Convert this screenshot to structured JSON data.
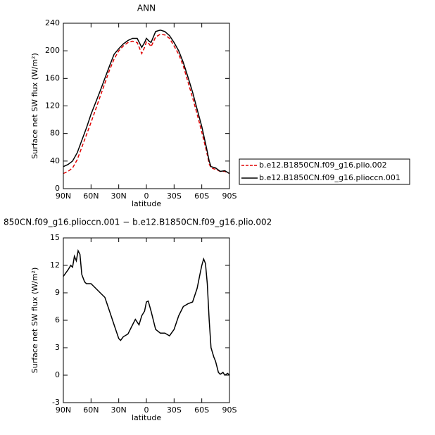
{
  "chart_data": [
    {
      "type": "line",
      "title": "ANN",
      "ylabel": "Surface net SW flux (W/m²)",
      "xlabel": "latitude",
      "xlim": [
        90,
        -90
      ],
      "xticks": [
        {
          "value": 90,
          "label": "90N"
        },
        {
          "value": 60,
          "label": "60N"
        },
        {
          "value": 30,
          "label": "30N"
        },
        0,
        {
          "value": -30,
          "label": "30S"
        },
        {
          "value": -60,
          "label": "60S"
        },
        {
          "value": -90,
          "label": "90S"
        }
      ],
      "ylim": [
        0,
        240
      ],
      "yticks": [
        0,
        40,
        80,
        120,
        160,
        200,
        240
      ],
      "legend": "right",
      "x": [
        90,
        85,
        80,
        75,
        70,
        65,
        60,
        55,
        50,
        45,
        40,
        35,
        30,
        25,
        20,
        15,
        10,
        5,
        2,
        0,
        -3,
        -5,
        -10,
        -15,
        -20,
        -25,
        -30,
        -35,
        -40,
        -45,
        -50,
        -55,
        -60,
        -65,
        -68,
        -70,
        -75,
        -80,
        -85,
        -90
      ],
      "series": [
        {
          "name": "b.e12.B1850CN.f09_g16.plio.002",
          "color": "#e00000",
          "dash": true,
          "values": [
            22,
            25,
            30,
            42,
            60,
            78,
            96,
            115,
            134,
            153,
            172,
            188,
            200,
            207,
            212,
            214,
            212,
            196,
            205,
            213,
            210,
            206,
            220,
            224,
            223,
            218,
            207,
            195,
            178,
            155,
            132,
            108,
            82,
            55,
            36,
            30,
            28,
            25,
            25,
            22
          ]
        },
        {
          "name": "b.e12.B1850CN.f09_g16.plioccn.001",
          "color": "#000000",
          "dash": false,
          "values": [
            32,
            35,
            40,
            52,
            70,
            88,
            108,
            125,
            142,
            160,
            178,
            195,
            203,
            210,
            215,
            218,
            218,
            205,
            212,
            218,
            214,
            212,
            228,
            230,
            228,
            222,
            212,
            200,
            183,
            162,
            140,
            115,
            90,
            60,
            40,
            32,
            30,
            25,
            26,
            22
          ]
        }
      ]
    },
    {
      "type": "line",
      "title": "850CN.f09_g16.plioccn.001 − b.e12.B1850CN.f09_g16.plio.002",
      "ylabel": "Surface net SW flux (W/m²)",
      "xlabel": "latitude",
      "xlim": [
        90,
        -90
      ],
      "xticks": [
        {
          "value": 90,
          "label": "90N"
        },
        {
          "value": 60,
          "label": "60N"
        },
        {
          "value": 30,
          "label": "30N"
        },
        0,
        {
          "value": -30,
          "label": "30S"
        },
        {
          "value": -60,
          "label": "60S"
        },
        {
          "value": -90,
          "label": "90S"
        }
      ],
      "ylim": [
        -3,
        15
      ],
      "yticks": [
        -3,
        0,
        3,
        6,
        9,
        12,
        15
      ],
      "x": [
        90,
        85,
        82,
        80,
        78,
        76,
        74,
        72,
        70,
        67,
        65,
        60,
        55,
        50,
        45,
        40,
        35,
        30,
        28,
        25,
        20,
        15,
        12,
        8,
        5,
        2,
        0,
        -2,
        -5,
        -8,
        -10,
        -15,
        -20,
        -25,
        -30,
        -35,
        -40,
        -45,
        -50,
        -55,
        -58,
        -60,
        -62,
        -64,
        -66,
        -68,
        -70,
        -73,
        -75,
        -78,
        -80,
        -83,
        -85,
        -88,
        -90
      ],
      "series": [
        {
          "color": "#000000",
          "dash": false,
          "values": [
            10.8,
            11.5,
            12,
            11.8,
            13,
            12.5,
            13.6,
            13.2,
            11,
            10.2,
            10,
            10,
            9.5,
            9,
            8.5,
            7,
            5.5,
            4,
            3.8,
            4.2,
            4.5,
            5.5,
            6.1,
            5.5,
            6.5,
            7,
            8,
            8.1,
            7,
            5.8,
            5,
            4.6,
            4.6,
            4.3,
            5,
            6.5,
            7.5,
            7.8,
            8,
            9.5,
            11,
            12,
            12.7,
            12.2,
            10,
            6,
            3,
            2,
            1.5,
            0.3,
            0.1,
            0.3,
            0,
            0.2,
            0
          ]
        }
      ]
    }
  ]
}
